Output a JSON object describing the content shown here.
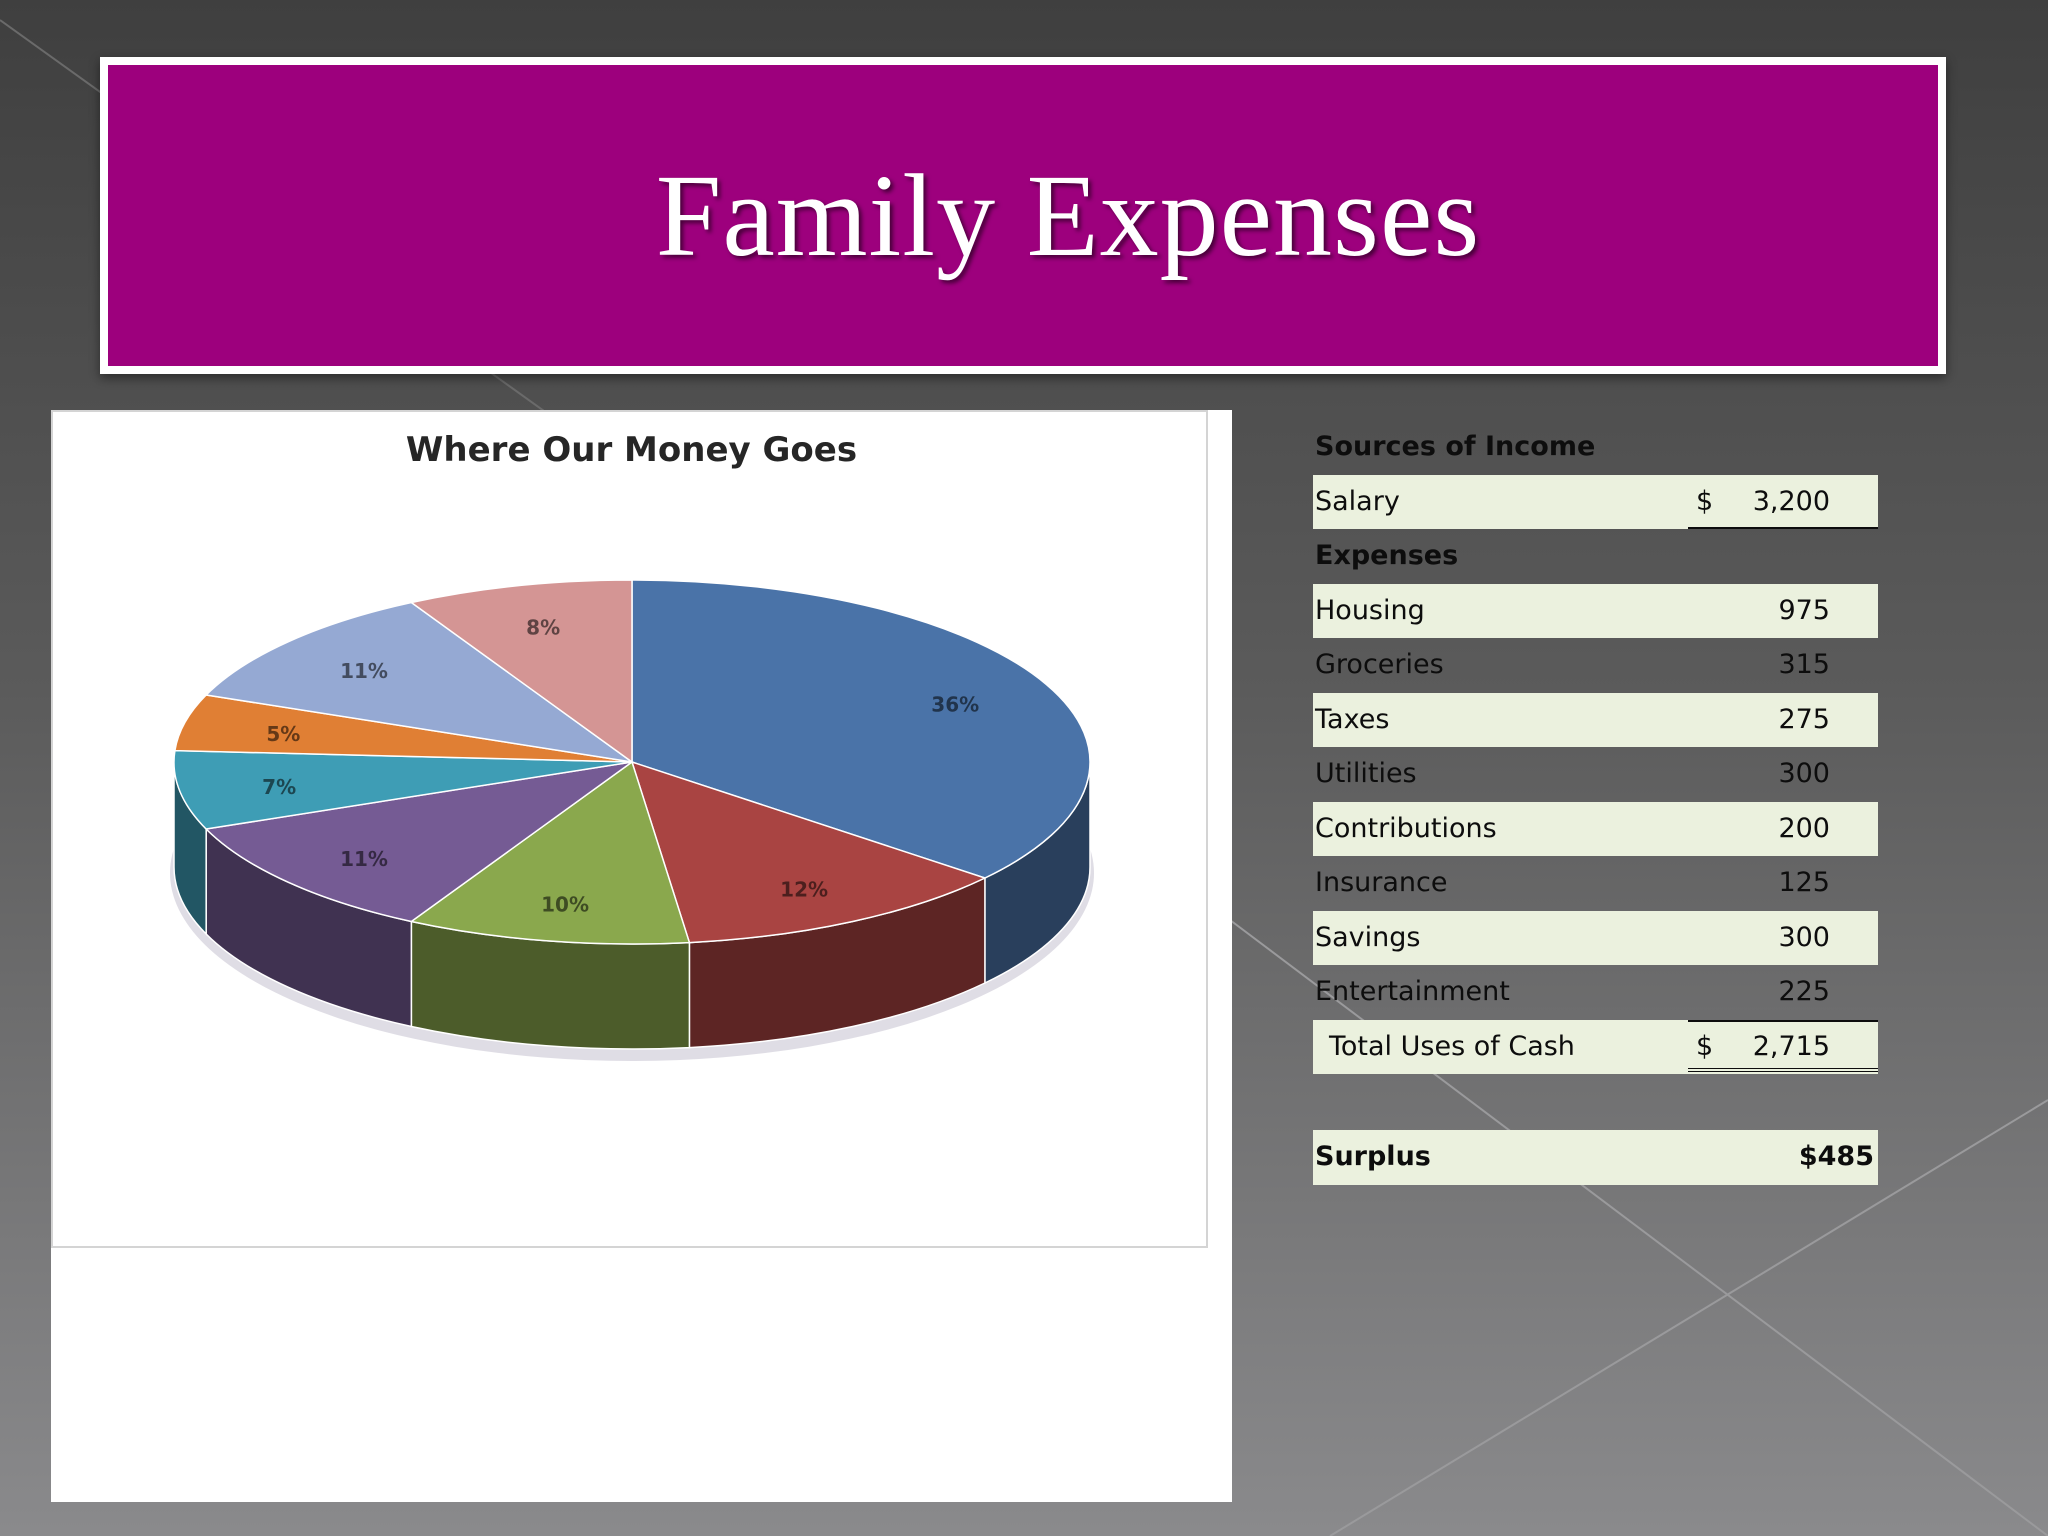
{
  "slide": {
    "title": "Family Expenses"
  },
  "chart_data": {
    "type": "pie",
    "title": "Where Our Money Goes",
    "slices": [
      {
        "label": "36%",
        "value": 36,
        "color": "#4a73a8"
      },
      {
        "label": "12%",
        "value": 12,
        "color": "#a94442"
      },
      {
        "label": "10%",
        "value": 10,
        "color": "#8aa84d"
      },
      {
        "label": "11%",
        "value": 11,
        "color": "#755b94"
      },
      {
        "label": "7%",
        "value": 7,
        "color": "#3e9db5"
      },
      {
        "label": "5%",
        "value": 5,
        "color": "#e07f34"
      },
      {
        "label": "11%",
        "value": 11,
        "color": "#95a9d3"
      },
      {
        "label": "8%",
        "value": 8,
        "color": "#d49594"
      }
    ]
  },
  "table": {
    "income_header": "Sources of Income",
    "salary": {
      "label": "Salary",
      "currency": "$",
      "value": "3,200"
    },
    "expenses_header": "Expenses",
    "expenses": [
      {
        "label": "Housing",
        "value": "975"
      },
      {
        "label": "Groceries",
        "value": "315"
      },
      {
        "label": "Taxes",
        "value": "275"
      },
      {
        "label": "Utilities",
        "value": "300"
      },
      {
        "label": "Contributions",
        "value": "200"
      },
      {
        "label": "Insurance",
        "value": "125"
      },
      {
        "label": "Savings",
        "value": "300"
      },
      {
        "label": "Entertainment",
        "value": "225"
      }
    ],
    "total": {
      "label": "Total Uses of Cash",
      "currency": "$",
      "value": "2,715"
    },
    "surplus": {
      "label": "Surplus",
      "value": "$485"
    }
  }
}
